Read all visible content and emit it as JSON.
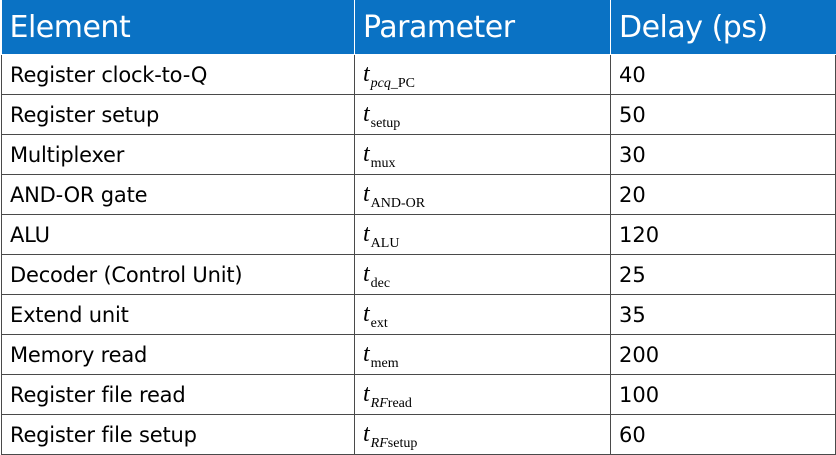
{
  "header": {
    "element": "Element",
    "parameter": "Parameter",
    "delay": "Delay (ps)"
  },
  "rows": [
    {
      "element": "Register clock-to-Q",
      "symbol": "t",
      "sub_italic": "pcq",
      "sub": "_PC",
      "delay": "40"
    },
    {
      "element": "Register setup",
      "symbol": "t",
      "sub_italic": "",
      "sub": "setup",
      "delay": "50"
    },
    {
      "element": "Multiplexer",
      "symbol": "t",
      "sub_italic": "",
      "sub": "mux",
      "delay": "30"
    },
    {
      "element": "AND-OR gate",
      "symbol": "t",
      "sub_italic": "",
      "sub": "AND-OR",
      "delay": "20"
    },
    {
      "element": "ALU",
      "symbol": "t",
      "sub_italic": "",
      "sub": "ALU",
      "delay": "120"
    },
    {
      "element": "Decoder (Control Unit)",
      "symbol": "t",
      "sub_italic": "",
      "sub": "dec",
      "delay": "25"
    },
    {
      "element": "Extend unit",
      "symbol": "t",
      "sub_italic": "",
      "sub": "ext",
      "delay": "35"
    },
    {
      "element": "Memory read",
      "symbol": "t",
      "sub_italic": "",
      "sub": "mem",
      "delay": "200"
    },
    {
      "element": "Register file read",
      "symbol": "t",
      "sub_italic": "RF",
      "sub": "read",
      "delay": "100"
    },
    {
      "element": "Register file setup",
      "symbol": "t",
      "sub_italic": "RF",
      "sub": "setup",
      "delay": "60"
    }
  ],
  "colors": {
    "header_background": "#0a72c4",
    "header_text": "#ffffff",
    "grid_lines": "#4a4a4a"
  }
}
